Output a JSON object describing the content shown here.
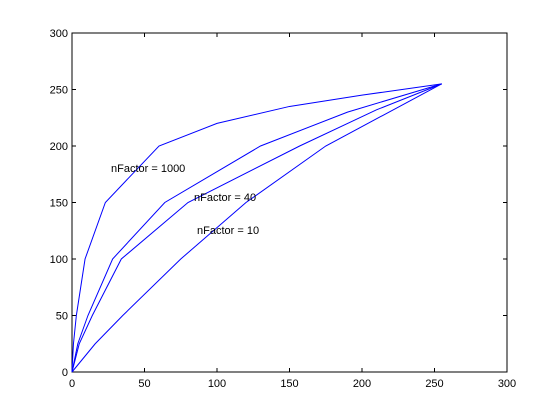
{
  "chart_data": {
    "type": "line",
    "series": [
      {
        "color": "#0000ff",
        "x": [
          0,
          1,
          3,
          9,
          23,
          60,
          100,
          150,
          200,
          255
        ],
        "values": [
          0,
          25,
          50,
          100,
          150,
          200,
          220,
          235,
          245,
          255
        ]
      },
      {
        "color": "#0000ff",
        "x": [
          0,
          4,
          11,
          28,
          64,
          130,
          190,
          255
        ],
        "values": [
          0,
          25,
          50,
          100,
          150,
          200,
          230,
          255
        ]
      },
      {
        "color": "#0000ff",
        "x": [
          0,
          5,
          14,
          34,
          80,
          157,
          210,
          255
        ],
        "values": [
          0,
          25,
          50,
          100,
          150,
          200,
          232,
          255
        ]
      },
      {
        "color": "#0000ff",
        "x": [
          0,
          16,
          35,
          75,
          120,
          175,
          255
        ],
        "values": [
          0,
          25,
          50,
          100,
          150,
          200,
          255
        ]
      }
    ],
    "annotations": [
      "nFactor  = 1000",
      "nFactor  = 40",
      "nFactor  = 10"
    ],
    "xlim": [
      0,
      300
    ],
    "xticks": [
      0,
      50,
      100,
      150,
      200,
      250,
      300
    ],
    "ylim": [
      0,
      300
    ],
    "yticks": [
      0,
      50,
      100,
      150,
      200,
      250,
      300
    ]
  }
}
